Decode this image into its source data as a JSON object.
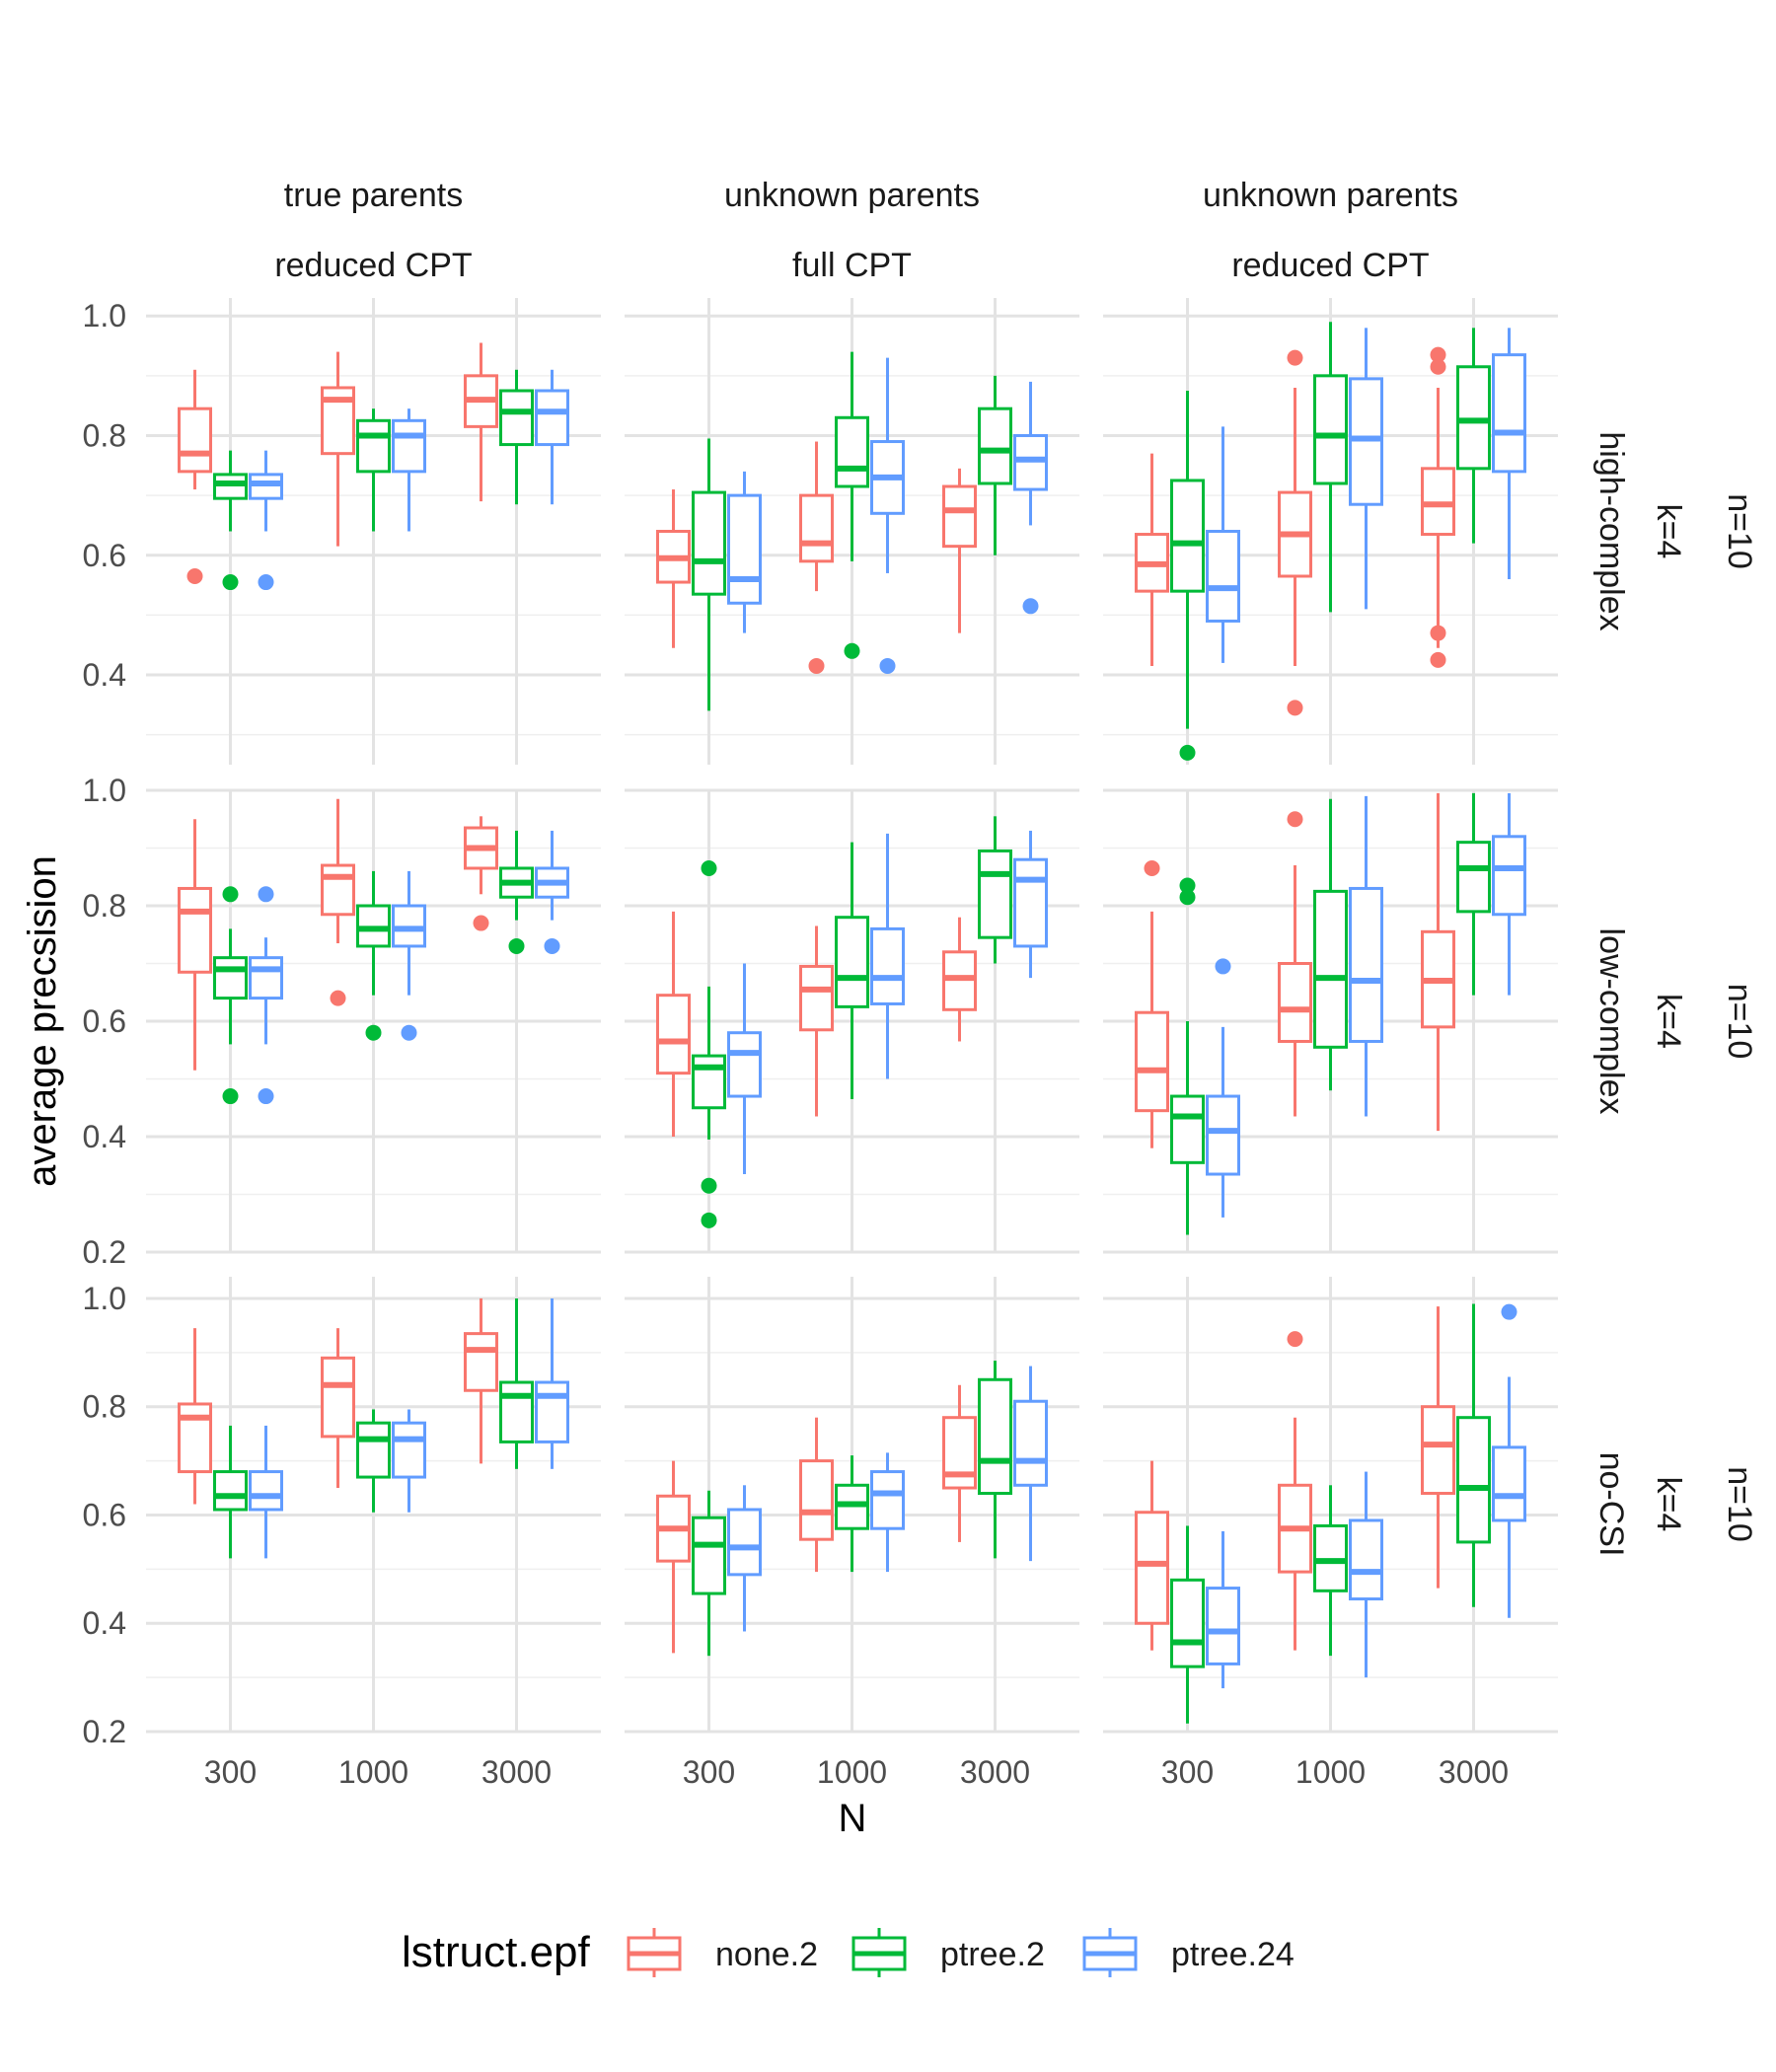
{
  "chart_data": {
    "type": "boxplot",
    "xlabel": "N",
    "ylabel": "average precsision",
    "x_categories": [
      "300",
      "1000",
      "3000"
    ],
    "legend": {
      "title": "lstruct.epf",
      "position": "bottom",
      "entries": [
        {
          "name": "none.2",
          "color": "#F8766D"
        },
        {
          "name": "ptree.2",
          "color": "#00BA38"
        },
        {
          "name": "ptree.24",
          "color": "#619CFF"
        }
      ]
    },
    "grid": true,
    "columns": [
      {
        "top": "true parents",
        "bottom": "reduced CPT"
      },
      {
        "top": "unknown parents",
        "bottom": "full CPT"
      },
      {
        "top": "unknown parents",
        "bottom": "reduced CPT"
      }
    ],
    "rows": [
      {
        "strip1": "high-complex",
        "strip2": "k=4",
        "strip3": "n=10",
        "ylim": [
          0.25,
          1.03
        ],
        "yticks": [
          "0.4",
          "0.6",
          "0.8",
          "1.0"
        ]
      },
      {
        "strip1": "low-complex",
        "strip2": "k=4",
        "strip3": "n=10",
        "ylim": [
          0.2,
          1.0
        ],
        "yticks": [
          "0.2",
          "0.4",
          "0.6",
          "0.8",
          "1.0"
        ]
      },
      {
        "strip1": "no-CSI",
        "strip2": "k=4",
        "strip3": "n=10",
        "ylim": [
          0.2,
          1.04
        ],
        "yticks": [
          "0.2",
          "0.4",
          "0.6",
          "0.8",
          "1.0"
        ]
      }
    ],
    "boxes": [
      [
        [
          [
            [
              0.71,
              0.74,
              0.77,
              0.845,
              0.91,
              [
                0.565
              ]
            ],
            [
              0.64,
              0.695,
              0.72,
              0.735,
              0.775,
              [
                0.555
              ]
            ],
            [
              0.64,
              0.695,
              0.72,
              0.735,
              0.775,
              [
                0.555
              ]
            ]
          ],
          [
            [
              0.615,
              0.77,
              0.86,
              0.88,
              0.94,
              []
            ],
            [
              0.64,
              0.74,
              0.8,
              0.825,
              0.845,
              []
            ],
            [
              0.64,
              0.74,
              0.8,
              0.825,
              0.845,
              []
            ]
          ],
          [
            [
              0.69,
              0.815,
              0.86,
              0.9,
              0.955,
              []
            ],
            [
              0.685,
              0.785,
              0.84,
              0.875,
              0.91,
              []
            ],
            [
              0.685,
              0.785,
              0.84,
              0.875,
              0.91,
              []
            ]
          ]
        ],
        [
          [
            [
              0.445,
              0.555,
              0.595,
              0.64,
              0.71,
              []
            ],
            [
              0.34,
              0.535,
              0.59,
              0.705,
              0.795,
              []
            ],
            [
              0.47,
              0.52,
              0.56,
              0.7,
              0.74,
              []
            ]
          ],
          [
            [
              0.54,
              0.59,
              0.62,
              0.7,
              0.79,
              [
                0.415
              ]
            ],
            [
              0.59,
              0.715,
              0.745,
              0.83,
              0.94,
              [
                0.44
              ]
            ],
            [
              0.57,
              0.67,
              0.73,
              0.79,
              0.93,
              [
                0.415
              ]
            ]
          ],
          [
            [
              0.47,
              0.615,
              0.675,
              0.715,
              0.745,
              []
            ],
            [
              0.6,
              0.72,
              0.775,
              0.845,
              0.9,
              []
            ],
            [
              0.65,
              0.71,
              0.76,
              0.8,
              0.89,
              [
                0.515
              ]
            ]
          ]
        ],
        [
          [
            [
              0.415,
              0.54,
              0.585,
              0.635,
              0.77,
              []
            ],
            [
              0.31,
              0.54,
              0.62,
              0.725,
              0.875,
              [
                0.27
              ]
            ],
            [
              0.42,
              0.49,
              0.545,
              0.64,
              0.815,
              []
            ]
          ],
          [
            [
              0.415,
              0.565,
              0.635,
              0.705,
              0.88,
              [
                0.93,
                0.345
              ]
            ],
            [
              0.505,
              0.72,
              0.8,
              0.9,
              0.99,
              []
            ],
            [
              0.51,
              0.685,
              0.795,
              0.895,
              0.98,
              []
            ]
          ],
          [
            [
              0.445,
              0.635,
              0.685,
              0.745,
              0.88,
              [
                0.935,
                0.915,
                0.47,
                0.425
              ]
            ],
            [
              0.62,
              0.745,
              0.825,
              0.915,
              0.98,
              []
            ],
            [
              0.56,
              0.74,
              0.805,
              0.935,
              0.98,
              []
            ]
          ]
        ]
      ],
      [
        [
          [
            [
              0.515,
              0.685,
              0.79,
              0.83,
              0.95,
              []
            ],
            [
              0.56,
              0.64,
              0.69,
              0.71,
              0.76,
              [
                0.82,
                0.47
              ]
            ],
            [
              0.56,
              0.64,
              0.69,
              0.71,
              0.745,
              [
                0.82,
                0.47
              ]
            ]
          ],
          [
            [
              0.735,
              0.785,
              0.85,
              0.87,
              0.985,
              [
                0.64
              ]
            ],
            [
              0.645,
              0.73,
              0.76,
              0.8,
              0.86,
              [
                0.58
              ]
            ],
            [
              0.645,
              0.73,
              0.76,
              0.8,
              0.86,
              [
                0.58
              ]
            ]
          ],
          [
            [
              0.82,
              0.865,
              0.9,
              0.935,
              0.955,
              [
                0.77
              ]
            ],
            [
              0.775,
              0.815,
              0.84,
              0.865,
              0.93,
              [
                0.73
              ]
            ],
            [
              0.775,
              0.815,
              0.84,
              0.865,
              0.93,
              [
                0.73
              ]
            ]
          ]
        ],
        [
          [
            [
              0.4,
              0.51,
              0.565,
              0.645,
              0.79,
              []
            ],
            [
              0.395,
              0.45,
              0.52,
              0.54,
              0.66,
              [
                0.865,
                0.315,
                0.255
              ]
            ],
            [
              0.335,
              0.47,
              0.545,
              0.58,
              0.7,
              []
            ]
          ],
          [
            [
              0.435,
              0.585,
              0.655,
              0.695,
              0.765,
              []
            ],
            [
              0.465,
              0.625,
              0.675,
              0.78,
              0.91,
              []
            ],
            [
              0.5,
              0.63,
              0.675,
              0.76,
              0.925,
              []
            ]
          ],
          [
            [
              0.565,
              0.62,
              0.675,
              0.72,
              0.78,
              []
            ],
            [
              0.7,
              0.745,
              0.855,
              0.895,
              0.955,
              []
            ],
            [
              0.675,
              0.73,
              0.845,
              0.88,
              0.93,
              []
            ]
          ]
        ],
        [
          [
            [
              0.38,
              0.445,
              0.515,
              0.615,
              0.79,
              [
                0.865
              ]
            ],
            [
              0.23,
              0.355,
              0.435,
              0.47,
              0.6,
              [
                0.835,
                0.815
              ]
            ],
            [
              0.26,
              0.335,
              0.41,
              0.47,
              0.59,
              [
                0.695
              ]
            ]
          ],
          [
            [
              0.435,
              0.565,
              0.62,
              0.7,
              0.87,
              [
                0.95
              ]
            ],
            [
              0.48,
              0.555,
              0.675,
              0.825,
              0.985,
              []
            ],
            [
              0.435,
              0.565,
              0.67,
              0.83,
              0.99,
              []
            ]
          ],
          [
            [
              0.41,
              0.59,
              0.67,
              0.755,
              0.995,
              []
            ],
            [
              0.645,
              0.79,
              0.865,
              0.91,
              0.995,
              []
            ],
            [
              0.645,
              0.785,
              0.865,
              0.92,
              0.995,
              []
            ]
          ]
        ]
      ],
      [
        [
          [
            [
              0.62,
              0.68,
              0.78,
              0.805,
              0.945,
              []
            ],
            [
              0.52,
              0.61,
              0.635,
              0.68,
              0.765,
              []
            ],
            [
              0.52,
              0.61,
              0.635,
              0.68,
              0.765,
              []
            ]
          ],
          [
            [
              0.65,
              0.745,
              0.84,
              0.89,
              0.945,
              []
            ],
            [
              0.605,
              0.67,
              0.74,
              0.77,
              0.795,
              []
            ],
            [
              0.605,
              0.67,
              0.74,
              0.77,
              0.795,
              []
            ]
          ],
          [
            [
              0.695,
              0.83,
              0.905,
              0.935,
              1.0,
              []
            ],
            [
              0.685,
              0.735,
              0.82,
              0.845,
              1.0,
              []
            ],
            [
              0.685,
              0.735,
              0.82,
              0.845,
              1.0,
              []
            ]
          ]
        ],
        [
          [
            [
              0.345,
              0.515,
              0.575,
              0.635,
              0.7,
              []
            ],
            [
              0.34,
              0.455,
              0.545,
              0.595,
              0.645,
              []
            ],
            [
              0.385,
              0.49,
              0.54,
              0.61,
              0.655,
              []
            ]
          ],
          [
            [
              0.495,
              0.555,
              0.605,
              0.7,
              0.78,
              []
            ],
            [
              0.495,
              0.575,
              0.62,
              0.655,
              0.71,
              []
            ],
            [
              0.495,
              0.575,
              0.64,
              0.68,
              0.715,
              []
            ]
          ],
          [
            [
              0.55,
              0.65,
              0.675,
              0.78,
              0.84,
              []
            ],
            [
              0.52,
              0.64,
              0.7,
              0.85,
              0.885,
              []
            ],
            [
              0.515,
              0.655,
              0.7,
              0.81,
              0.875,
              []
            ]
          ]
        ],
        [
          [
            [
              0.35,
              0.4,
              0.51,
              0.605,
              0.7,
              []
            ],
            [
              0.215,
              0.32,
              0.365,
              0.48,
              0.58,
              []
            ],
            [
              0.28,
              0.325,
              0.385,
              0.465,
              0.57,
              []
            ]
          ],
          [
            [
              0.35,
              0.495,
              0.575,
              0.655,
              0.78,
              [
                0.925
              ]
            ],
            [
              0.34,
              0.46,
              0.515,
              0.58,
              0.655,
              []
            ],
            [
              0.3,
              0.445,
              0.495,
              0.59,
              0.68,
              []
            ]
          ],
          [
            [
              0.465,
              0.64,
              0.73,
              0.8,
              0.985,
              []
            ],
            [
              0.43,
              0.55,
              0.65,
              0.78,
              0.99,
              []
            ],
            [
              0.41,
              0.59,
              0.635,
              0.725,
              0.855,
              [
                0.975
              ]
            ]
          ]
        ]
      ]
    ]
  }
}
